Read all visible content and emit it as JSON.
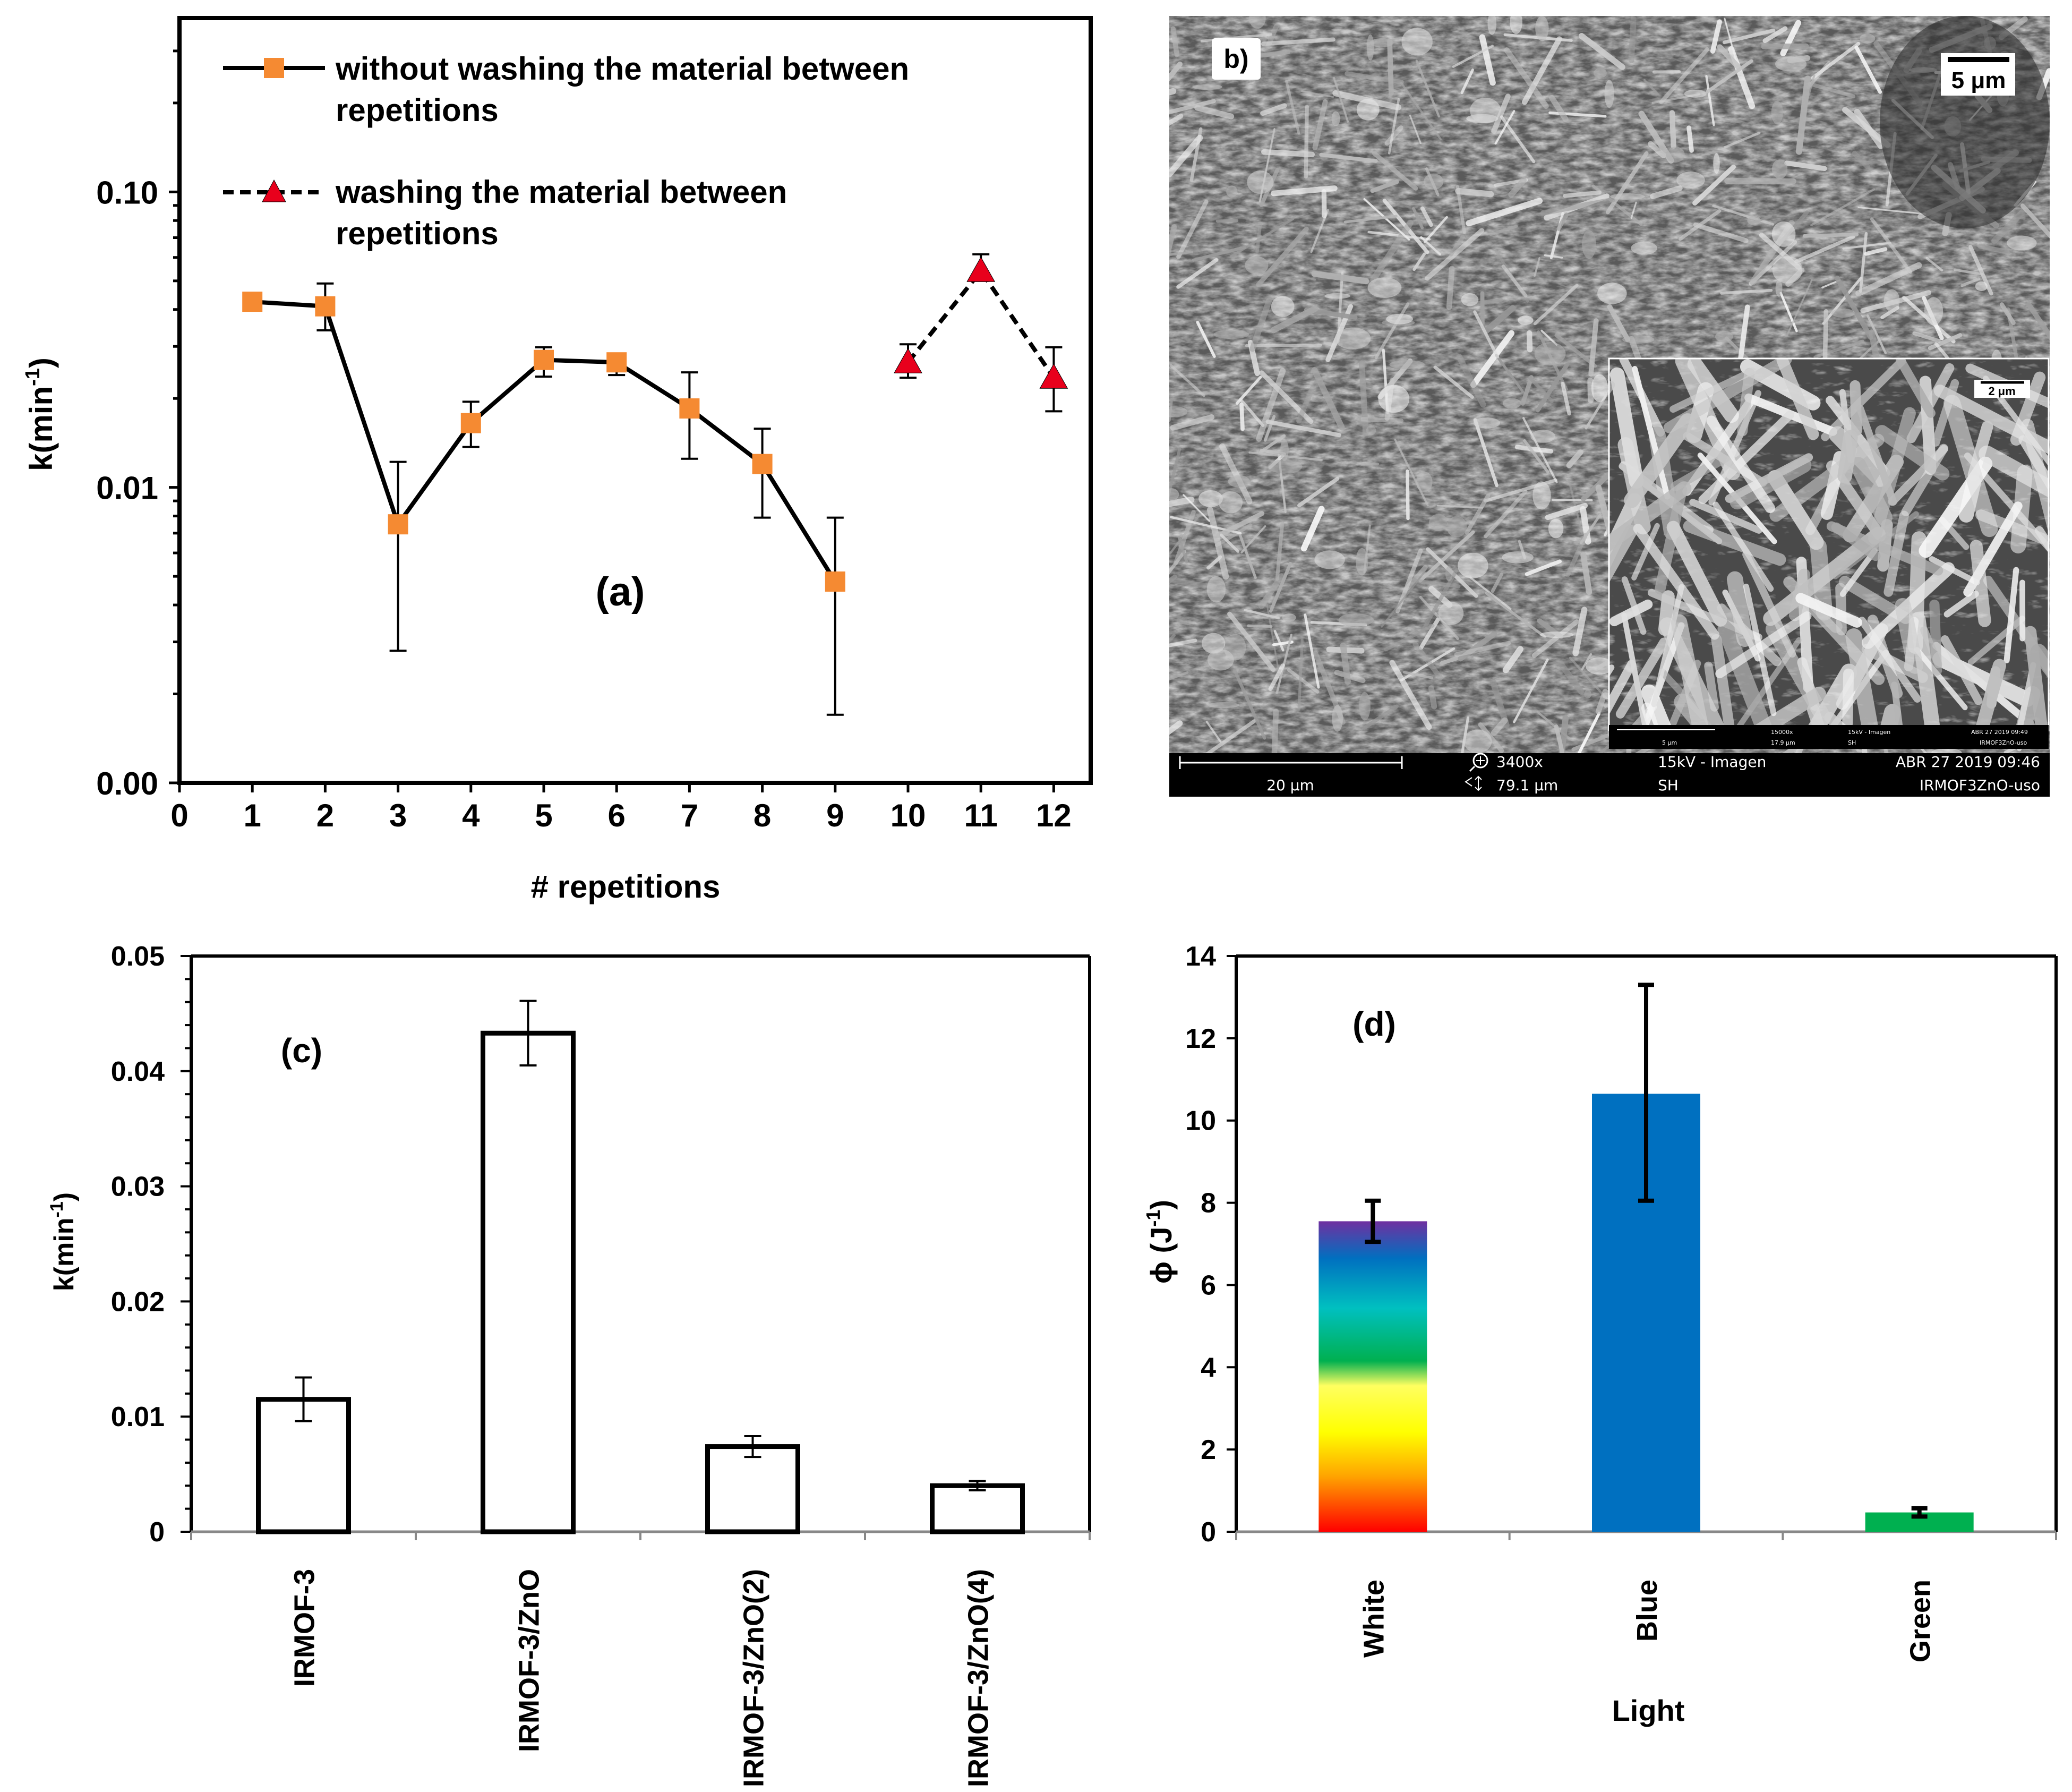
{
  "chart_data": [
    {
      "panel": "a",
      "type": "line",
      "panel_label": "(a)",
      "xlabel": "# repetitions",
      "ylabel_base": "k(min",
      "ylabel_sup": "-1",
      "ylabel_end": ")",
      "yscale": "log",
      "x_ticks": [
        "0",
        "1",
        "2",
        "3",
        "4",
        "5",
        "6",
        "7",
        "8",
        "9",
        "10",
        "11",
        "12"
      ],
      "y_ticks": [
        {
          "value": 0.1,
          "label": "0.10"
        },
        {
          "value": 0.01,
          "label": "0.01"
        },
        {
          "value": 0.001,
          "label": "0.00"
        }
      ],
      "xlim": [
        0,
        12.5
      ],
      "ylim": [
        0.001,
        0.4
      ],
      "series": [
        {
          "name": "without washing the material between repetitions",
          "legend_line1": "without washing the material between",
          "legend_line2": "repetitions",
          "marker": "square",
          "color": "#f58a32",
          "line": "solid",
          "x": [
            1,
            2,
            3,
            4,
            5,
            6,
            7,
            8,
            9
          ],
          "values": [
            0.0425,
            0.041,
            0.0075,
            0.0165,
            0.027,
            0.0265,
            0.0185,
            0.012,
            0.0048
          ],
          "err_low": [
            0.0425,
            0.034,
            0.0028,
            0.0137,
            0.0237,
            0.024,
            0.0125,
            0.0079,
            0.0017
          ],
          "err_high": [
            0.0425,
            0.049,
            0.0122,
            0.0195,
            0.0298,
            0.028,
            0.0245,
            0.0158,
            0.0079
          ]
        },
        {
          "name": "washing the material between repetitions",
          "legend_line1": "washing the material between",
          "legend_line2": "repetitions",
          "marker": "triangle",
          "color": "#e8001c",
          "line": "dashed",
          "x": [
            10,
            11,
            12
          ],
          "values": [
            0.0265,
            0.054,
            0.0235
          ],
          "err_low": [
            0.0235,
            0.05,
            0.0181
          ],
          "err_high": [
            0.0305,
            0.0615,
            0.0298
          ]
        }
      ]
    },
    {
      "panel": "c",
      "type": "bar",
      "panel_label": "(c)",
      "ylabel_base": "k(min",
      "ylabel_sup": "-1",
      "ylabel_end": ")",
      "categories": [
        "IRMOF-3",
        "IRMOF-3/ZnO",
        "IRMOF-3/ZnO(2)",
        "IRMOF-3/ZnO(4)"
      ],
      "values": [
        0.0115,
        0.0433,
        0.0074,
        0.004
      ],
      "err_low": [
        0.0096,
        0.0405,
        0.0065,
        0.0036
      ],
      "err_high": [
        0.0134,
        0.0461,
        0.0083,
        0.0044
      ],
      "ylim": [
        0,
        0.05
      ],
      "y_ticks": [
        "0",
        "0.01",
        "0.02",
        "0.03",
        "0.04",
        "0.05"
      ]
    },
    {
      "panel": "d",
      "type": "bar",
      "panel_label": "(d)",
      "xlabel": "Light",
      "ylabel_base": "ϕ (J",
      "ylabel_sup": "-1",
      "ylabel_end": ")",
      "categories": [
        "White",
        "Blue",
        "Green"
      ],
      "values": [
        7.55,
        10.65,
        0.47
      ],
      "err_low": [
        7.05,
        8.05,
        0.37
      ],
      "err_high": [
        8.05,
        13.3,
        0.57
      ],
      "colors": [
        "rainbow",
        "#0070c0",
        "#00b050"
      ],
      "ylim": [
        0,
        14
      ],
      "y_ticks": [
        "0",
        "2",
        "4",
        "6",
        "8",
        "10",
        "12",
        "14"
      ]
    }
  ],
  "sem": {
    "panel_label": "b)",
    "scale_bar": "5 μm",
    "inset_scale_bar": "2 μm",
    "info_scale": "20 μm",
    "magnification": "3400x",
    "field_width": "79.1 μm",
    "voltage_mode": "15kV - Imagen",
    "detector": "SH",
    "datetime": "ABR 27 2019 09:46",
    "sample": "IRMOF3ZnO-uso",
    "inset_info": {
      "scale": "5 μm",
      "magnification": "15000x",
      "field_width": "17.9 μm",
      "voltage_mode": "15kV - Imagen",
      "detector": "SH",
      "datetime": "ABR 27 2019 09:49",
      "sample": "IRMOF3ZnO-uso"
    }
  }
}
